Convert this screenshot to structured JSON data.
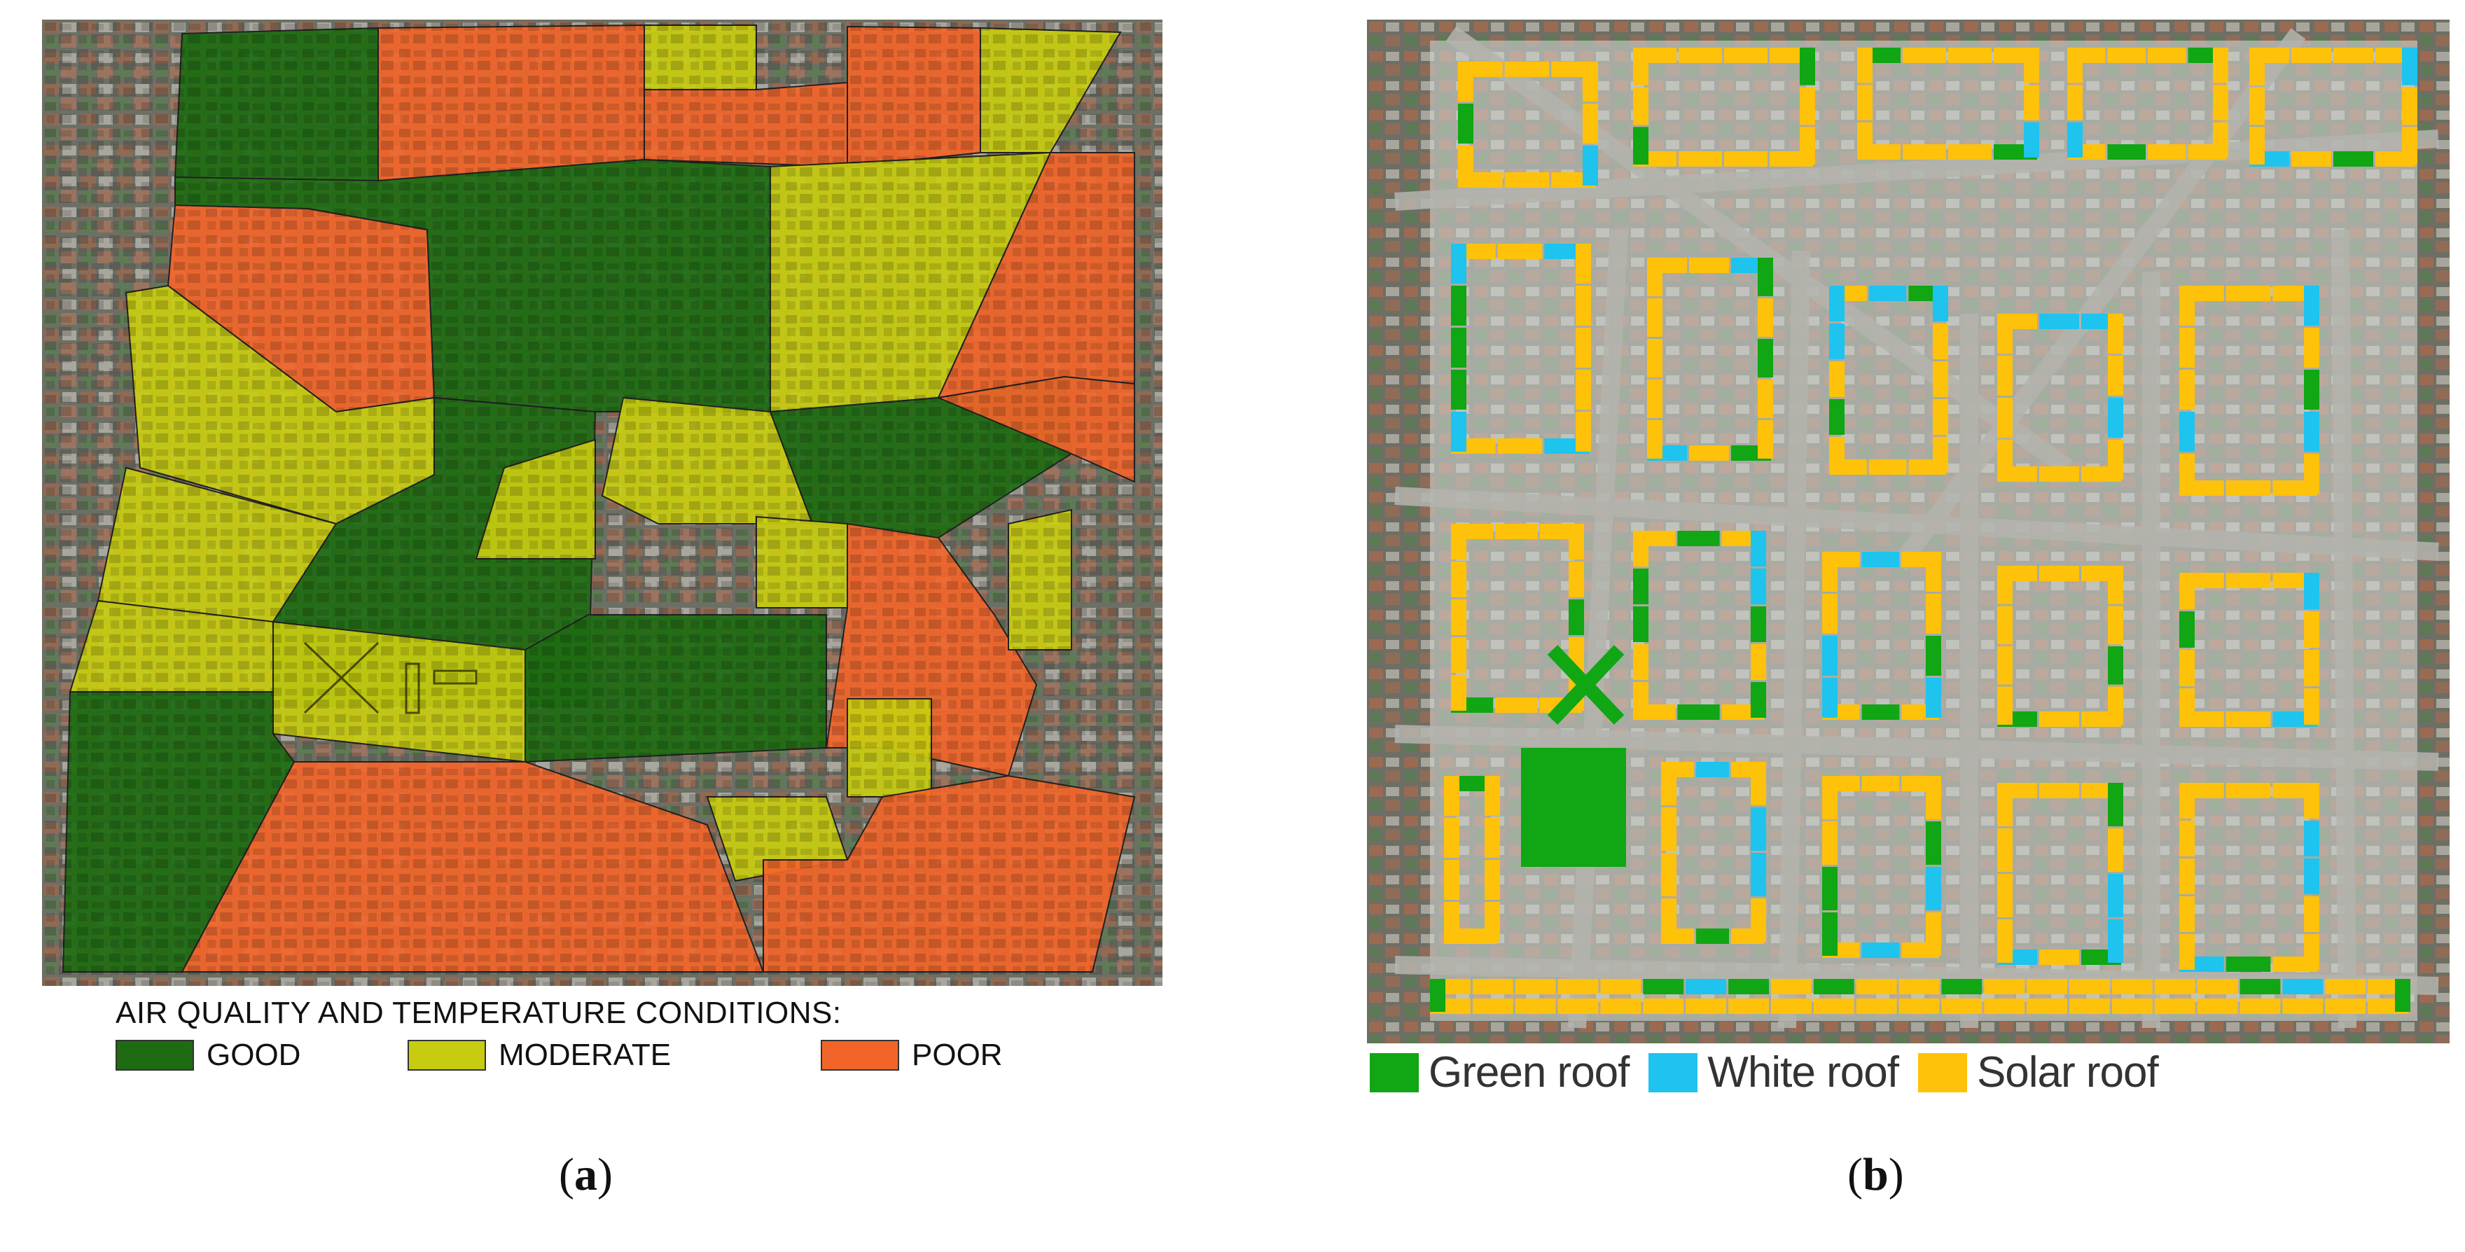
{
  "panel_a": {
    "legend_title": "AIR QUALITY AND TEMPERATURE CONDITIONS:",
    "legend": [
      {
        "label": "GOOD",
        "color": "#1e6b12"
      },
      {
        "label": "MODERATE",
        "color": "#c8cc10"
      },
      {
        "label": "POOR",
        "color": "#f2652a"
      }
    ],
    "caption_open": "(",
    "caption_letter": "a",
    "caption_close": ")"
  },
  "panel_b": {
    "legend": [
      {
        "label": "Green roof",
        "color": "#10a614"
      },
      {
        "label": "White roof",
        "color": "#1ec3ee"
      },
      {
        "label": "Solar roof",
        "color": "#ffc20a"
      }
    ],
    "caption_open": "(",
    "caption_letter": "b",
    "caption_close": ")"
  },
  "colors": {
    "aerial_base": "#6f7468",
    "street": "#9a9a94",
    "overlay_b": "#d8dcd8"
  }
}
